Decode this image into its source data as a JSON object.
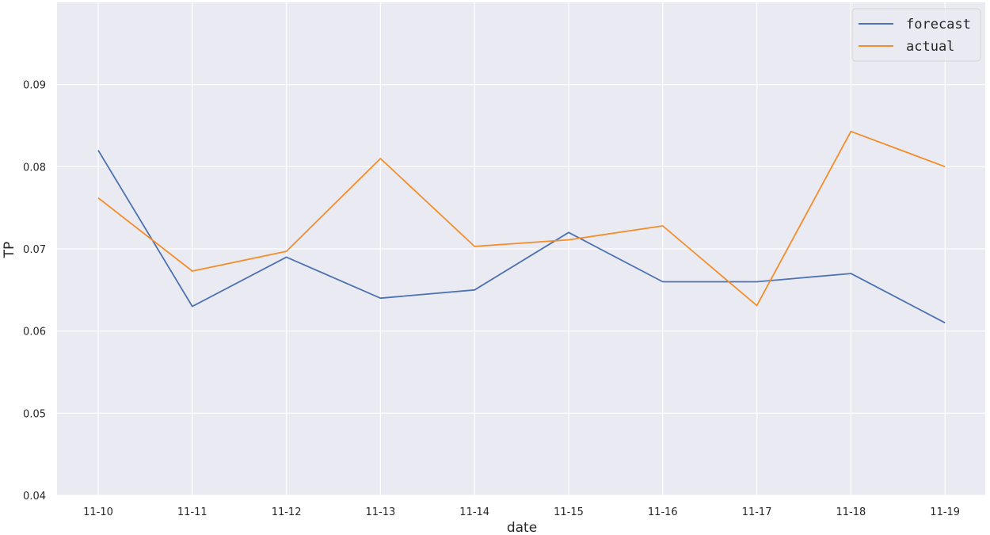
{
  "chart_data": {
    "type": "line",
    "xlabel": "date",
    "ylabel": "TP",
    "x": [
      "11-10",
      "11-11",
      "11-12",
      "11-13",
      "11-14",
      "11-15",
      "11-16",
      "11-17",
      "11-18",
      "11-19"
    ],
    "ylim": [
      0.04,
      0.1
    ],
    "yticks": [
      "0.04",
      "0.05",
      "0.06",
      "0.07",
      "0.08",
      "0.09"
    ],
    "series": [
      {
        "name": "forecast",
        "color": "#4c72b0",
        "values": [
          0.082,
          0.063,
          0.069,
          0.064,
          0.065,
          0.072,
          0.066,
          0.066,
          0.067,
          0.061
        ]
      },
      {
        "name": "actual",
        "color": "#f28e2b",
        "values": [
          0.0762,
          0.0673,
          0.0697,
          0.081,
          0.0703,
          0.0711,
          0.0728,
          0.0631,
          0.0843,
          0.08
        ]
      }
    ],
    "grid": true,
    "legend": "top-right",
    "background_color": "#eaeaf2",
    "grid_color": "#ffffff"
  }
}
